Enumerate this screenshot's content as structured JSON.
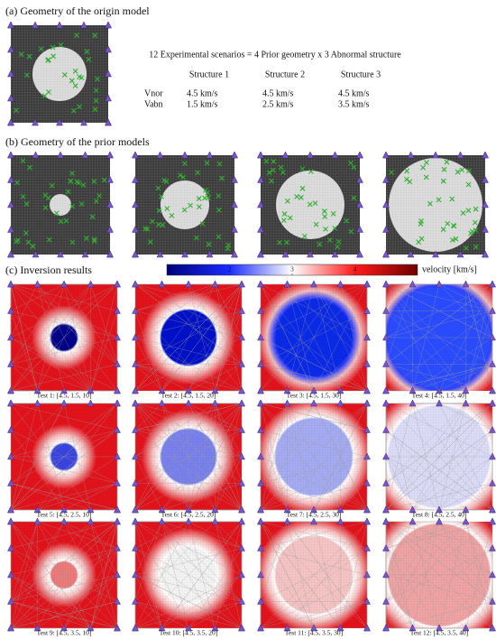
{
  "panel_a": {
    "title": "(a) Geometry of the origin model",
    "summary": "12 Experimental scenarios = 4 Prior geometry x 3 Abnormal structure",
    "table": {
      "columns": [
        "Structure 1",
        "Structure 2",
        "Structure 3"
      ],
      "rows": [
        {
          "label": "Vnor",
          "values": [
            "4.5 km/s",
            "4.5 km/s",
            "4.5 km/s"
          ]
        },
        {
          "label": "Vabn",
          "values": [
            "1.5 km/s",
            "2.5 km/s",
            "3.5 km/s"
          ]
        }
      ]
    }
  },
  "panel_b": {
    "title": "(b) Geometry of the prior models"
  },
  "panel_c": {
    "title": "(c) Inversion results",
    "colorbar": {
      "label": "velocity [km/s]",
      "lim": [
        1,
        5
      ],
      "ticks": [
        2,
        3,
        4
      ]
    },
    "tests": [
      "Test 1: [4.5, 1.5, 10]",
      "Test 2: [4.5, 1.5, 20]",
      "Test 3: [4.5, 1.5, 30]",
      "Test 4: [4.5, 1.5, 40]",
      "Test 5: [4.5, 2.5, 10]",
      "Test 6: [4.5, 2.5, 20]",
      "Test 7: [4.5, 2.5, 30]",
      "Test 8: [4.5, 2.5, 40]",
      "Test 9: [4.5, 3.5, 10]",
      "Test 10: [4.5, 3.5, 20]",
      "Test 11: [4.5, 3.5, 30]",
      "Test 12: [4.5, 3.5, 40]"
    ]
  }
}
